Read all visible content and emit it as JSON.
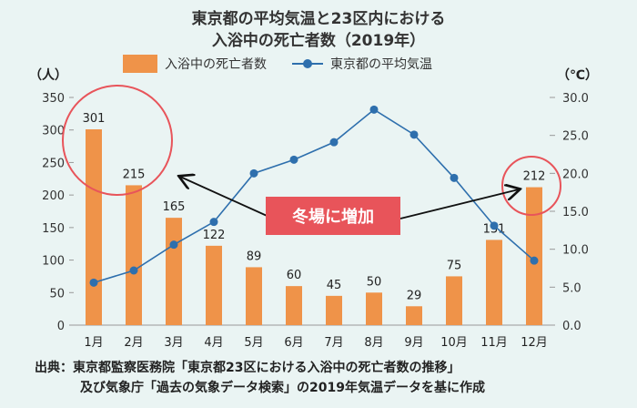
{
  "chart_data": {
    "type": "bar+line",
    "title": [
      "東京都の平均気温と23区内における",
      "入浴中の死亡者数（2019年）"
    ],
    "categories": [
      "1月",
      "2月",
      "3月",
      "4月",
      "5月",
      "6月",
      "7月",
      "8月",
      "9月",
      "10月",
      "11月",
      "12月"
    ],
    "series": [
      {
        "name": "入浴中の死亡者数",
        "type": "bar",
        "axis": "left",
        "color": "#ef9349",
        "values": [
          301,
          215,
          165,
          122,
          89,
          60,
          45,
          50,
          29,
          75,
          131,
          212
        ]
      },
      {
        "name": "東京都の平均気温",
        "type": "line",
        "axis": "right",
        "color": "#2e6fad",
        "values": [
          5.6,
          7.2,
          10.6,
          13.6,
          20.0,
          21.8,
          24.1,
          28.4,
          25.1,
          19.4,
          13.1,
          8.5
        ]
      }
    ],
    "left_axis": {
      "label": "（人）",
      "ylim": [
        0,
        350
      ],
      "ticks": [
        "0",
        "50",
        "100",
        "150",
        "200",
        "250",
        "300",
        "350"
      ]
    },
    "right_axis": {
      "label": "（℃）",
      "ylim": [
        0,
        30
      ],
      "ticks": [
        "0.0",
        "5.0",
        "10.0",
        "15.0",
        "20.0",
        "25.0",
        "30.0"
      ]
    },
    "grid": false,
    "legend": "top",
    "annotation": "冬場に増加"
  },
  "footer": {
    "line1": "出典：東京都監察医務院「東京都23区における入浴中の死亡者数の推移」",
    "line2": "及び気象庁「過去の気象データ検索」の2019年気温データを基に作成"
  }
}
